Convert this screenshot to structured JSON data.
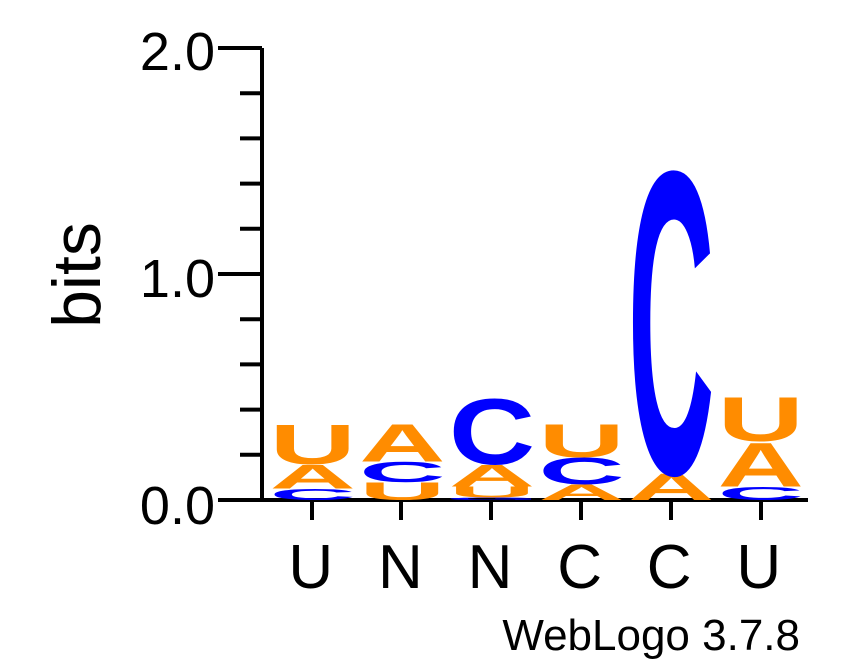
{
  "chart_data": {
    "type": "sequence-logo",
    "ylabel": "bits",
    "ylim": [
      0,
      2.0
    ],
    "y_tick_labels": [
      "0.0",
      "1.0",
      "2.0"
    ],
    "x_labels": [
      "U",
      "N",
      "N",
      "C",
      "C",
      "U"
    ],
    "footer": "WebLogo 3.7.8",
    "colors": {
      "A": "#ff8c00",
      "U": "#ff8c00",
      "C": "#0000ff",
      "G": "#0000ff"
    },
    "positions": [
      {
        "label": "U",
        "stack": [
          {
            "letter": "C",
            "bits": 0.05
          },
          {
            "letter": "A",
            "bits": 0.11
          },
          {
            "letter": "U",
            "bits": 0.18
          }
        ]
      },
      {
        "label": "N",
        "stack": [
          {
            "letter": "U",
            "bits": 0.08
          },
          {
            "letter": "C",
            "bits": 0.09
          },
          {
            "letter": "A",
            "bits": 0.17
          }
        ]
      },
      {
        "label": "N",
        "stack": [
          {
            "letter": "G",
            "bits": 0.01
          },
          {
            "letter": "U",
            "bits": 0.05
          },
          {
            "letter": "A",
            "bits": 0.1
          },
          {
            "letter": "C",
            "bits": 0.3
          }
        ]
      },
      {
        "label": "C",
        "stack": [
          {
            "letter": "A",
            "bits": 0.07
          },
          {
            "letter": "C",
            "bits": 0.12
          },
          {
            "letter": "U",
            "bits": 0.15
          }
        ]
      },
      {
        "label": "C",
        "stack": [
          {
            "letter": "A",
            "bits": 0.12
          },
          {
            "letter": "C",
            "bits": 1.38
          }
        ]
      },
      {
        "label": "U",
        "stack": [
          {
            "letter": "C",
            "bits": 0.06
          },
          {
            "letter": "A",
            "bits": 0.2
          },
          {
            "letter": "U",
            "bits": 0.2
          }
        ]
      }
    ]
  }
}
